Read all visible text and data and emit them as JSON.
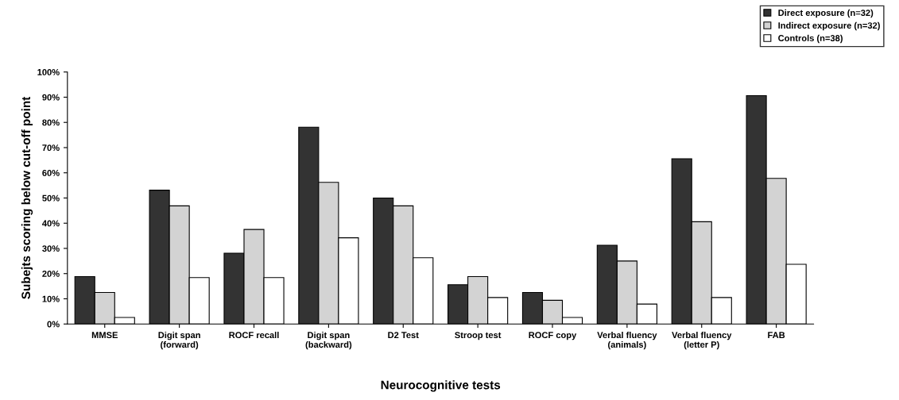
{
  "chart_data": {
    "type": "bar",
    "xlabel": "Neurocognitive tests",
    "ylabel": "Subejts scoring below cut-off point",
    "categories": [
      "MMSE",
      "Digit span\n(forward)",
      "ROCF recall",
      "Digit span\n(backward)",
      "D2 Test",
      "Stroop test",
      "ROCF copy",
      "Verbal fluency\n(animals)",
      "Verbal fluency\n(letter P)",
      "FAB"
    ],
    "series": [
      {
        "name": "Direct exposure (n=32)",
        "color": "#333333",
        "values": [
          18.8,
          53.1,
          28.1,
          78.1,
          50.0,
          15.6,
          12.5,
          31.2,
          65.6,
          90.6
        ]
      },
      {
        "name": "Indirect exposure (n=32)",
        "color": "#d3d3d3",
        "values": [
          12.5,
          46.9,
          37.5,
          56.2,
          46.9,
          18.8,
          9.4,
          25.0,
          40.6,
          57.8
        ]
      },
      {
        "name": "Controls (n=38)",
        "color": "#ffffff",
        "values": [
          2.6,
          18.4,
          18.4,
          34.2,
          26.3,
          10.5,
          2.6,
          7.9,
          10.5,
          23.7
        ]
      }
    ],
    "ylim": [
      0,
      100
    ],
    "yticks": [
      {
        "value": 0,
        "label": "0%"
      },
      {
        "value": 10,
        "label": "10%"
      },
      {
        "value": 20,
        "label": "20%"
      },
      {
        "value": 30,
        "label": "30%"
      },
      {
        "value": 40,
        "label": "40%"
      },
      {
        "value": 50,
        "label": "50%"
      },
      {
        "value": 60,
        "label": "60%"
      },
      {
        "value": 70,
        "label": "70%"
      },
      {
        "value": 80,
        "label": "80%"
      },
      {
        "value": 90,
        "label": "90%"
      },
      {
        "value": 100,
        "label": "100%"
      }
    ],
    "grid": false,
    "legend": "top right"
  }
}
